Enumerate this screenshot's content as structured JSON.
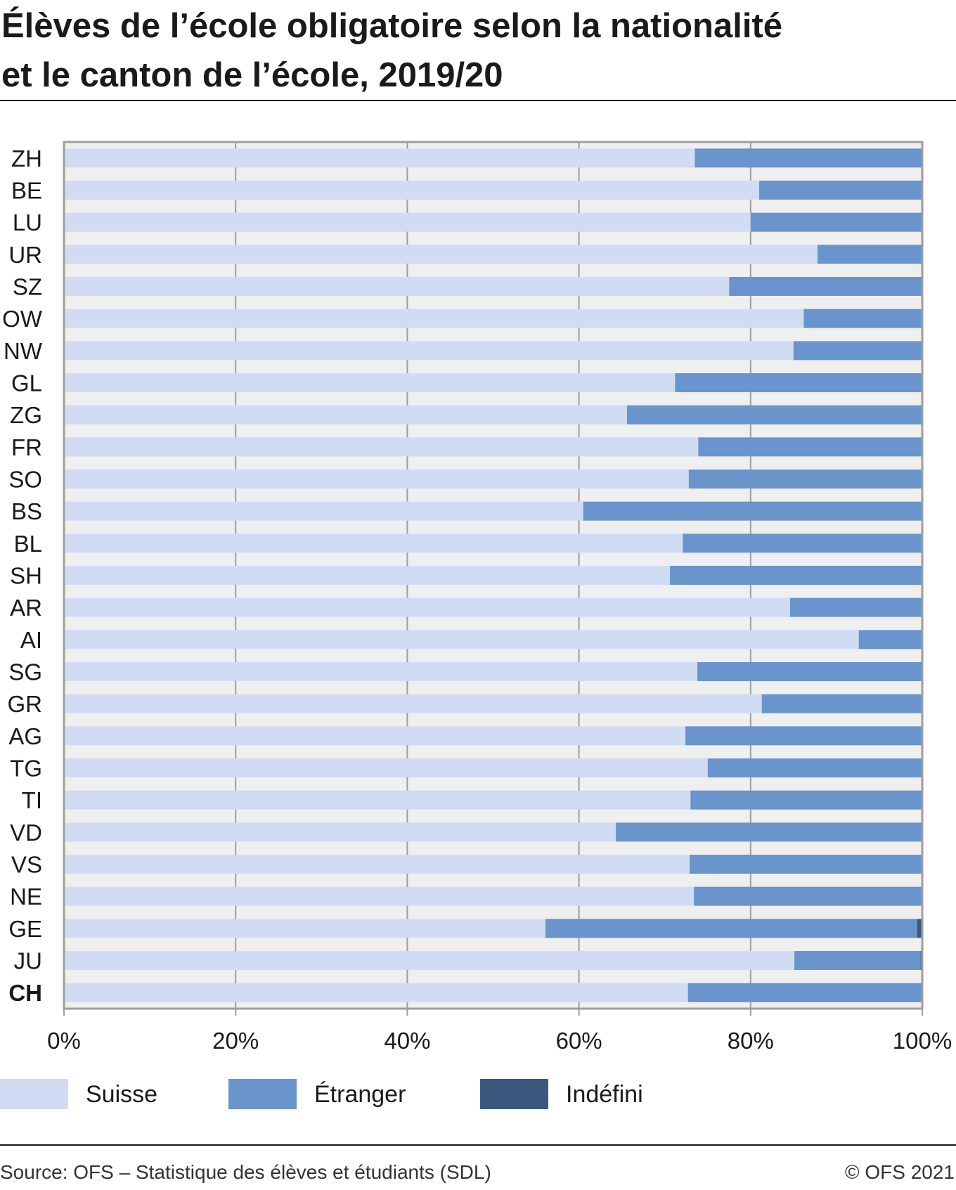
{
  "title_line1": "Élèves de l’école obligatoire selon la nationalité",
  "title_line2": "et le canton de l’école, 2019/20",
  "colors": {
    "suisse": "#cfdcf3",
    "etranger": "#6994cc",
    "indefini": "#3d587e",
    "plot_background": "#efefef",
    "grid": "#9e9e9e"
  },
  "chart_data": {
    "type": "bar",
    "orientation": "horizontal",
    "stacked": true,
    "percent": true,
    "xlim": [
      0,
      100
    ],
    "x_ticks": [
      "0%",
      "20%",
      "40%",
      "60%",
      "80%",
      "100%"
    ],
    "x_tick_values": [
      0,
      20,
      40,
      60,
      80,
      100
    ],
    "grid": true,
    "legend_position": "bottom",
    "categories": [
      "ZH",
      "BE",
      "LU",
      "UR",
      "SZ",
      "OW",
      "NW",
      "GL",
      "ZG",
      "FR",
      "SO",
      "BS",
      "BL",
      "SH",
      "AR",
      "AI",
      "SG",
      "GR",
      "AG",
      "TG",
      "TI",
      "VD",
      "VS",
      "NE",
      "GE",
      "JU",
      "CH"
    ],
    "highlight_category": "CH",
    "series": [
      {
        "name": "Suisse",
        "color": "#cfdcf3",
        "values": [
          73.5,
          81,
          80,
          87.8,
          77.5,
          86.2,
          85,
          71.2,
          65.6,
          73.9,
          72.8,
          60.5,
          72.1,
          70.6,
          84.6,
          92.6,
          73.8,
          81.3,
          72.4,
          75,
          73,
          64.3,
          72.9,
          73.4,
          56.1,
          85.1,
          72.7
        ]
      },
      {
        "name": "Étranger",
        "color": "#6994cc",
        "values": [
          26.5,
          19,
          20,
          12.2,
          22.5,
          13.8,
          15,
          28.8,
          34.4,
          26.1,
          27.2,
          39.5,
          27.9,
          29.4,
          15.4,
          7.4,
          26.2,
          18.7,
          27.6,
          25,
          27,
          35.7,
          27.1,
          26.6,
          43.3,
          14.7,
          27.2
        ]
      },
      {
        "name": "Indéfini",
        "color": "#3d587e",
        "values": [
          0,
          0,
          0,
          0,
          0,
          0,
          0,
          0,
          0,
          0,
          0,
          0,
          0,
          0,
          0,
          0,
          0,
          0,
          0,
          0,
          0,
          0,
          0,
          0,
          0.6,
          0.2,
          0.1
        ]
      }
    ]
  },
  "legend": [
    {
      "label": "Suisse",
      "color": "#cfdcf3"
    },
    {
      "label": "Étranger",
      "color": "#6994cc"
    },
    {
      "label": "Indéfini",
      "color": "#3d587e"
    }
  ],
  "source": "Source: OFS – Statistique des élèves et étudiants (SDL)",
  "copyright": "© OFS 2021"
}
